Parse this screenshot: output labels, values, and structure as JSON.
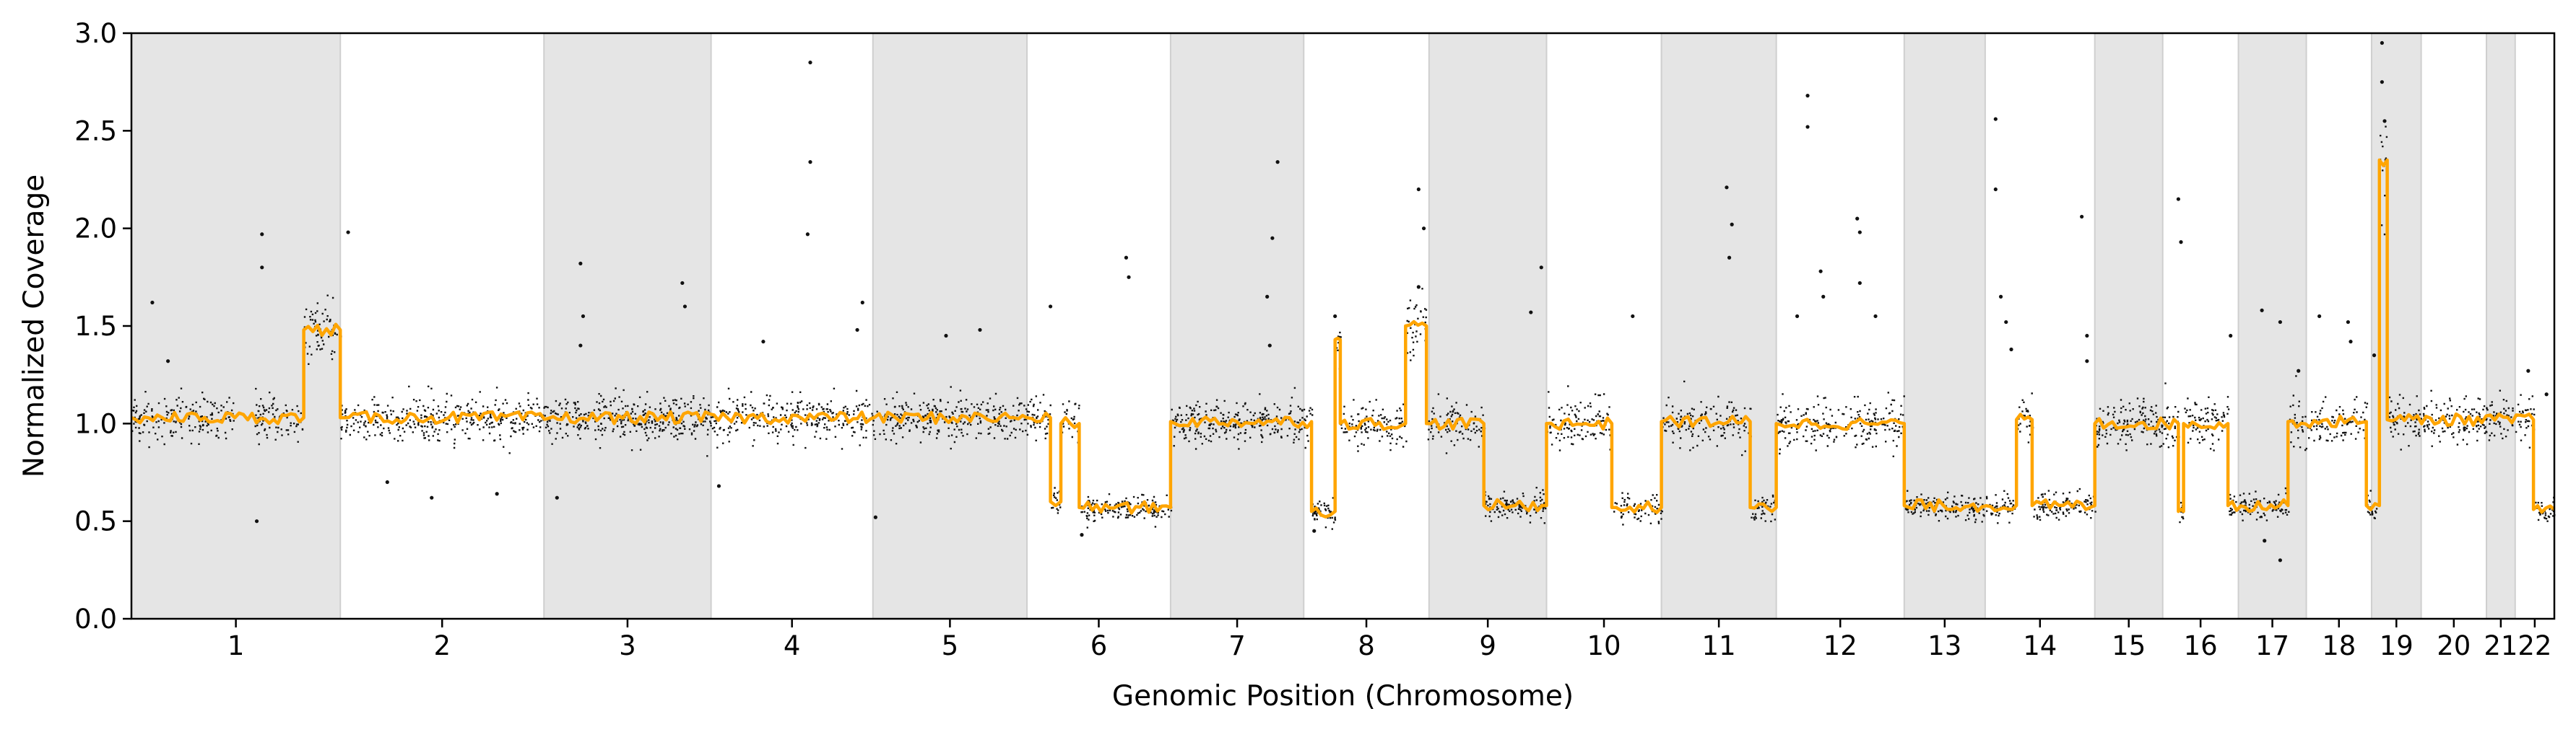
{
  "chart_data": {
    "type": "scatter",
    "title": "",
    "xlabel": "Genomic Position (Chromosome)",
    "ylabel": "Normalized Coverage",
    "ylim": [
      0.0,
      3.0
    ],
    "yticks": [
      0.0,
      0.5,
      1.0,
      1.5,
      2.0,
      2.5,
      3.0
    ],
    "yticklabels": [
      "0.0",
      "0.5",
      "1.0",
      "1.5",
      "2.0",
      "2.5",
      "3.0"
    ],
    "grid": false,
    "legend": "none",
    "colors": {
      "points": "#111111",
      "segment_line": "#FFA500",
      "band_shade": "#e5e5e5",
      "band_edge": "#cfcfcf"
    },
    "chromosomes": [
      {
        "label": "1",
        "start": 0.0,
        "end": 8.0,
        "shaded": true
      },
      {
        "label": "2",
        "start": 8.0,
        "end": 15.8,
        "shaded": false
      },
      {
        "label": "3",
        "start": 15.8,
        "end": 22.2,
        "shaded": true
      },
      {
        "label": "4",
        "start": 22.2,
        "end": 28.4,
        "shaded": false
      },
      {
        "label": "5",
        "start": 28.4,
        "end": 34.3,
        "shaded": true
      },
      {
        "label": "6",
        "start": 34.3,
        "end": 39.8,
        "shaded": false
      },
      {
        "label": "7",
        "start": 39.8,
        "end": 44.9,
        "shaded": true
      },
      {
        "label": "8",
        "start": 44.9,
        "end": 49.7,
        "shaded": false
      },
      {
        "label": "9",
        "start": 49.7,
        "end": 54.2,
        "shaded": true
      },
      {
        "label": "10",
        "start": 54.2,
        "end": 58.6,
        "shaded": false
      },
      {
        "label": "11",
        "start": 58.6,
        "end": 63.0,
        "shaded": true
      },
      {
        "label": "12",
        "start": 63.0,
        "end": 67.9,
        "shaded": false
      },
      {
        "label": "13",
        "start": 67.9,
        "end": 71.0,
        "shaded": true
      },
      {
        "label": "14",
        "start": 71.0,
        "end": 75.2,
        "shaded": false
      },
      {
        "label": "15",
        "start": 75.2,
        "end": 77.8,
        "shaded": true
      },
      {
        "label": "16",
        "start": 77.8,
        "end": 80.7,
        "shaded": false
      },
      {
        "label": "17",
        "start": 80.7,
        "end": 83.3,
        "shaded": true
      },
      {
        "label": "18",
        "start": 83.3,
        "end": 85.8,
        "shaded": false
      },
      {
        "label": "19",
        "start": 85.8,
        "end": 87.7,
        "shaded": true
      },
      {
        "label": "20",
        "start": 87.7,
        "end": 90.2,
        "shaded": false
      },
      {
        "label": "21",
        "start": 90.2,
        "end": 91.3,
        "shaded": true
      },
      {
        "label": "22",
        "start": 91.3,
        "end": 92.8,
        "shaded": false
      }
    ],
    "segments": [
      {
        "x0": 0.0,
        "x1": 6.6,
        "y": 1.03
      },
      {
        "x0": 6.6,
        "x1": 8.0,
        "y": 1.48
      },
      {
        "x0": 8.0,
        "x1": 34.3,
        "y": 1.03
      },
      {
        "x0": 34.3,
        "x1": 35.2,
        "y": 1.03
      },
      {
        "x0": 35.2,
        "x1": 35.6,
        "y": 0.6
      },
      {
        "x0": 35.6,
        "x1": 36.3,
        "y": 1.0
      },
      {
        "x0": 36.3,
        "x1": 39.8,
        "y": 0.57
      },
      {
        "x0": 39.8,
        "x1": 45.2,
        "y": 1.01
      },
      {
        "x0": 45.2,
        "x1": 46.1,
        "y": 0.55
      },
      {
        "x0": 46.1,
        "x1": 46.3,
        "y": 1.43
      },
      {
        "x0": 46.3,
        "x1": 48.8,
        "y": 1.0
      },
      {
        "x0": 48.8,
        "x1": 49.6,
        "y": 1.5
      },
      {
        "x0": 49.6,
        "x1": 51.8,
        "y": 1.0
      },
      {
        "x0": 51.8,
        "x1": 54.2,
        "y": 0.58
      },
      {
        "x0": 54.2,
        "x1": 56.7,
        "y": 1.0
      },
      {
        "x0": 56.7,
        "x1": 58.6,
        "y": 0.57
      },
      {
        "x0": 58.6,
        "x1": 62.0,
        "y": 1.01
      },
      {
        "x0": 62.0,
        "x1": 63.0,
        "y": 0.57
      },
      {
        "x0": 63.0,
        "x1": 67.9,
        "y": 1.0
      },
      {
        "x0": 67.9,
        "x1": 72.2,
        "y": 0.58
      },
      {
        "x0": 72.2,
        "x1": 72.8,
        "y": 1.02
      },
      {
        "x0": 72.8,
        "x1": 75.2,
        "y": 0.58
      },
      {
        "x0": 75.2,
        "x1": 78.4,
        "y": 1.0
      },
      {
        "x0": 78.4,
        "x1": 78.6,
        "y": 0.55
      },
      {
        "x0": 78.6,
        "x1": 80.3,
        "y": 1.0
      },
      {
        "x0": 80.3,
        "x1": 82.6,
        "y": 0.58
      },
      {
        "x0": 82.6,
        "x1": 85.6,
        "y": 1.01
      },
      {
        "x0": 85.6,
        "x1": 86.1,
        "y": 0.58
      },
      {
        "x0": 86.1,
        "x1": 86.4,
        "y": 2.35
      },
      {
        "x0": 86.4,
        "x1": 92.0,
        "y": 1.02
      },
      {
        "x0": 92.0,
        "x1": 92.8,
        "y": 0.56
      }
    ],
    "outliers": [
      [
        4.8,
        0.5
      ],
      [
        5.0,
        1.97
      ],
      [
        5.0,
        1.8
      ],
      [
        8.3,
        1.98
      ],
      [
        0.8,
        1.62
      ],
      [
        1.4,
        1.32
      ],
      [
        9.8,
        0.7
      ],
      [
        11.5,
        0.62
      ],
      [
        16.3,
        0.62
      ],
      [
        17.2,
        1.82
      ],
      [
        17.3,
        1.55
      ],
      [
        17.2,
        1.4
      ],
      [
        21.1,
        1.72
      ],
      [
        21.2,
        1.6
      ],
      [
        22.5,
        0.68
      ],
      [
        24.2,
        1.42
      ],
      [
        26.0,
        2.85
      ],
      [
        26.0,
        2.34
      ],
      [
        25.9,
        1.97
      ],
      [
        28.0,
        1.62
      ],
      [
        27.8,
        1.48
      ],
      [
        28.5,
        0.52
      ],
      [
        31.2,
        1.45
      ],
      [
        32.5,
        1.48
      ],
      [
        35.2,
        1.6
      ],
      [
        38.1,
        1.85
      ],
      [
        38.2,
        1.75
      ],
      [
        43.9,
        2.34
      ],
      [
        43.7,
        1.95
      ],
      [
        43.5,
        1.65
      ],
      [
        43.6,
        1.4
      ],
      [
        46.1,
        1.55
      ],
      [
        49.3,
        1.7
      ],
      [
        49.3,
        2.2
      ],
      [
        49.5,
        2.0
      ],
      [
        53.6,
        1.57
      ],
      [
        54.0,
        1.8
      ],
      [
        57.5,
        1.55
      ],
      [
        61.1,
        2.21
      ],
      [
        61.3,
        2.02
      ],
      [
        61.2,
        1.85
      ],
      [
        64.2,
        2.68
      ],
      [
        64.2,
        2.52
      ],
      [
        64.7,
        1.78
      ],
      [
        64.8,
        1.65
      ],
      [
        66.1,
        2.05
      ],
      [
        66.2,
        1.98
      ],
      [
        66.8,
        1.55
      ],
      [
        66.2,
        1.72
      ],
      [
        63.8,
        1.55
      ],
      [
        71.4,
        2.56
      ],
      [
        71.4,
        2.2
      ],
      [
        71.6,
        1.65
      ],
      [
        71.8,
        1.52
      ],
      [
        72.0,
        1.38
      ],
      [
        74.7,
        2.06
      ],
      [
        74.9,
        1.45
      ],
      [
        74.9,
        1.32
      ],
      [
        78.4,
        2.15
      ],
      [
        78.5,
        1.93
      ],
      [
        80.4,
        1.45
      ],
      [
        81.6,
        1.58
      ],
      [
        82.3,
        1.52
      ],
      [
        83.0,
        1.27
      ],
      [
        83.8,
        1.55
      ],
      [
        84.9,
        1.52
      ],
      [
        85.0,
        1.42
      ],
      [
        86.2,
        2.95
      ],
      [
        86.2,
        2.75
      ],
      [
        86.3,
        2.55
      ],
      [
        85.9,
        1.35
      ],
      [
        91.8,
        1.27
      ],
      [
        92.5,
        1.15
      ],
      [
        82.3,
        0.3
      ],
      [
        81.7,
        0.4
      ],
      [
        36.4,
        0.43
      ],
      [
        14.0,
        0.64
      ],
      [
        45.3,
        0.45
      ]
    ]
  }
}
